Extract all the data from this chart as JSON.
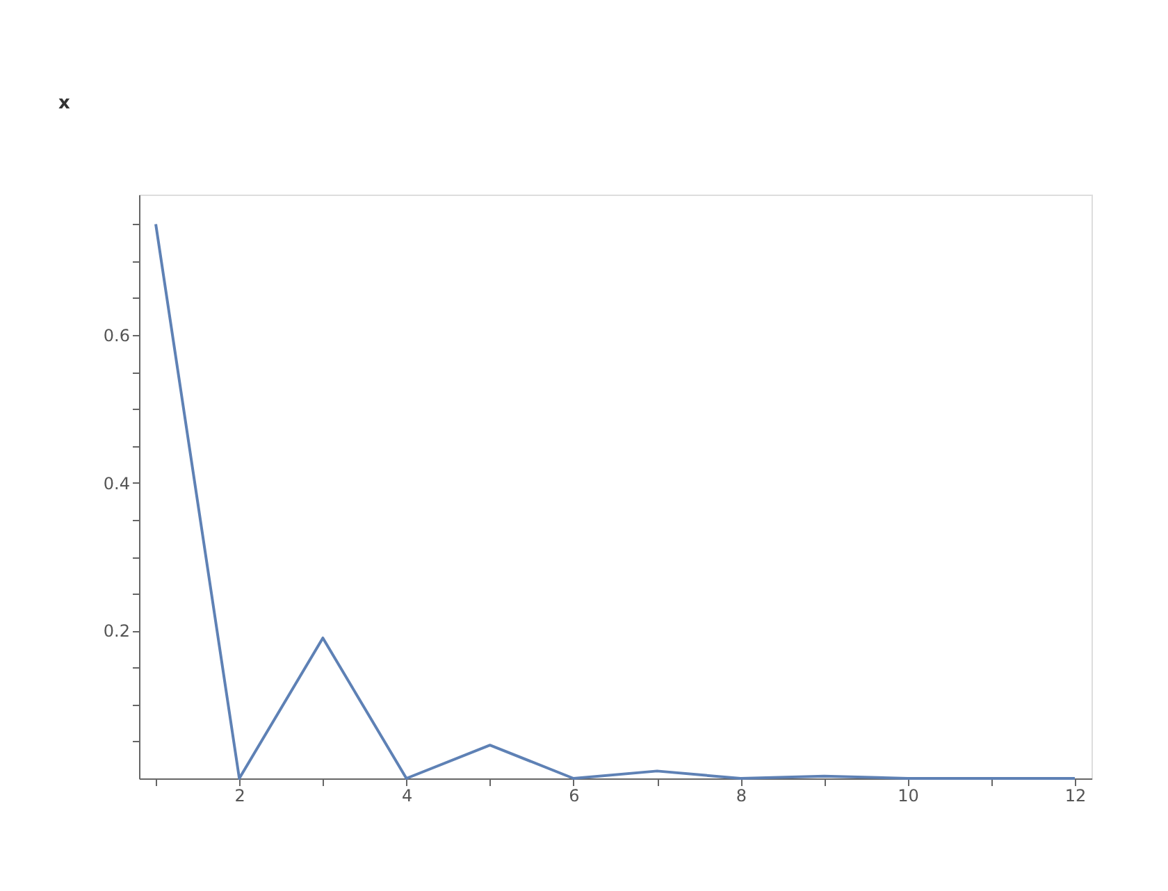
{
  "chart_data": {
    "type": "line",
    "x": [
      1,
      2,
      3,
      4,
      5,
      6,
      7,
      8,
      9,
      10,
      11,
      12
    ],
    "series": [
      {
        "color": "#5e81b5",
        "values": [
          0.75,
          0,
          0.19,
          0,
          0.045,
          0,
          0.01,
          0,
          0.003,
          0,
          0,
          0
        ]
      }
    ],
    "xlim": [
      0.8,
      12.2
    ],
    "ylim": [
      0,
      0.79
    ],
    "xticks": [
      {
        "value": 1,
        "label": null
      },
      2,
      {
        "value": 3,
        "label": null
      },
      4,
      {
        "value": 5,
        "label": null
      },
      6,
      {
        "value": 7,
        "label": null
      },
      8,
      {
        "value": 9,
        "label": null
      },
      10,
      {
        "value": 11,
        "label": null
      },
      12
    ],
    "yticks": [
      {
        "value": 0.05,
        "label": null
      },
      {
        "value": 0.1,
        "label": null
      },
      {
        "value": 0.15,
        "label": null
      },
      0.2,
      {
        "value": 0.25,
        "label": null
      },
      {
        "value": 0.3,
        "label": null
      },
      {
        "value": 0.35,
        "label": null
      },
      0.4,
      {
        "value": 0.45,
        "label": null
      },
      {
        "value": 0.5,
        "label": null
      },
      {
        "value": 0.55,
        "label": null
      },
      0.6,
      {
        "value": 0.65,
        "label": null
      },
      {
        "value": 0.7,
        "label": null
      },
      {
        "value": 0.75,
        "label": null
      }
    ],
    "annotations": [
      "x"
    ],
    "grid": false,
    "marker": "none",
    "line_style": "solid"
  }
}
